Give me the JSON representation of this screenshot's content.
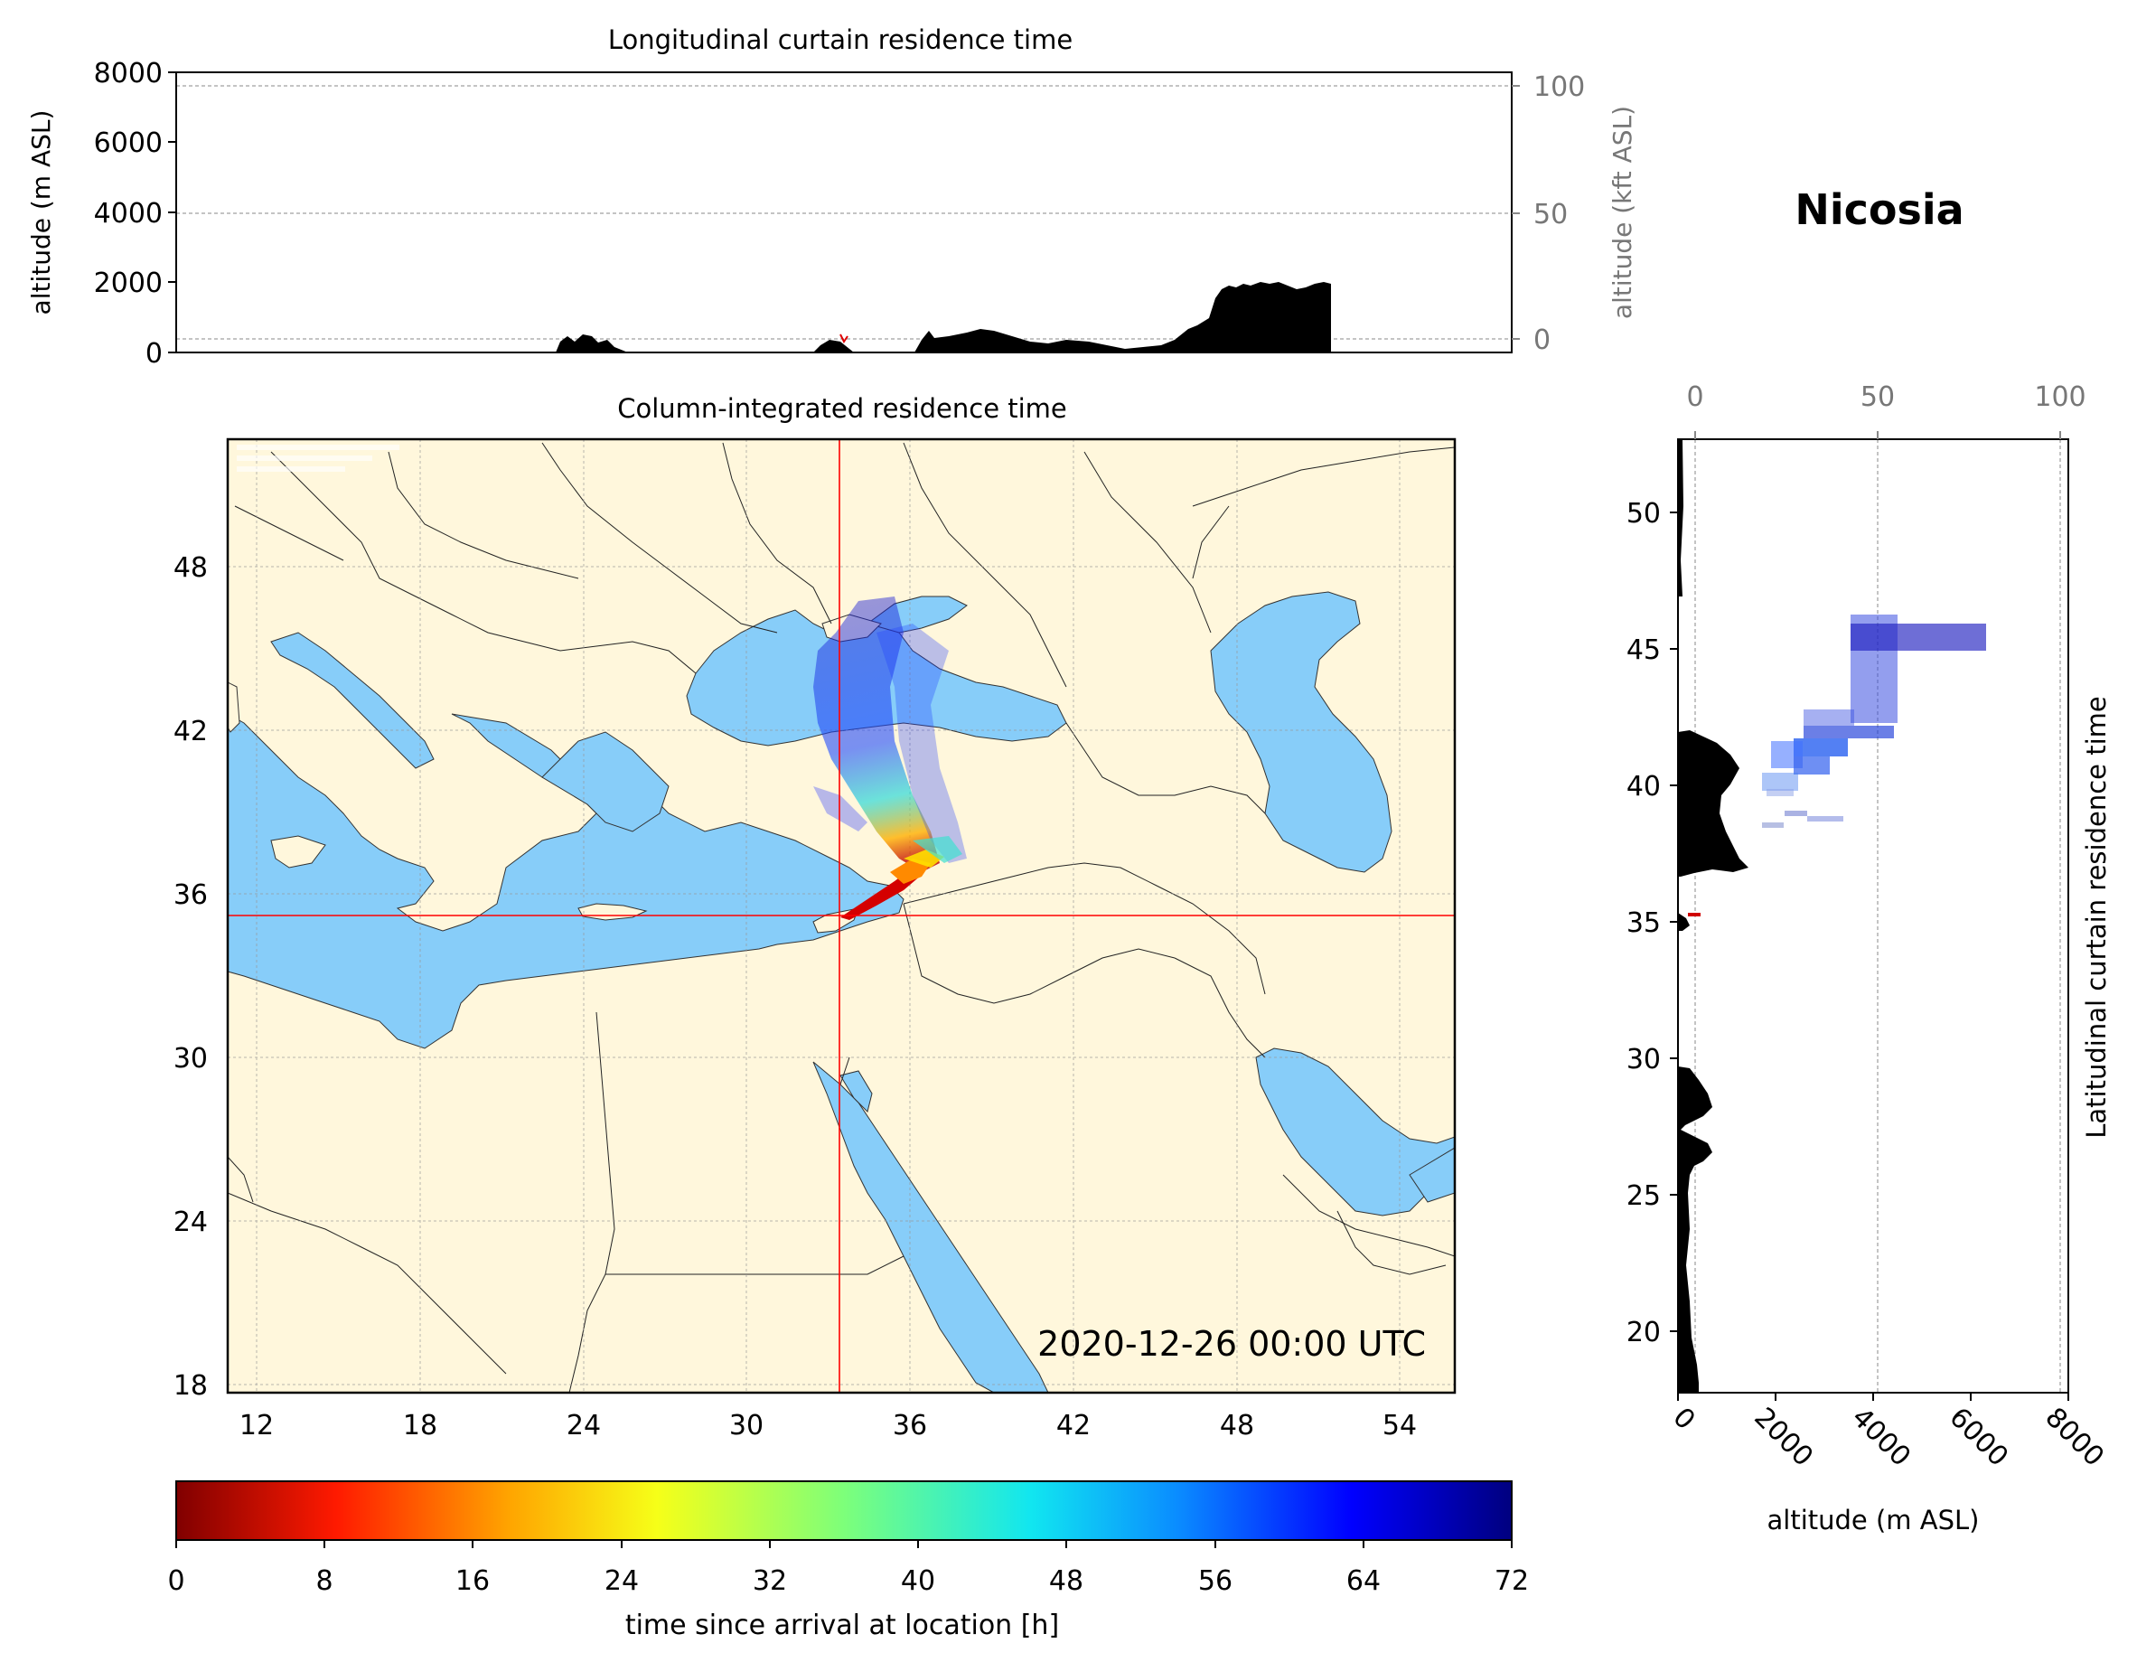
{
  "location_name": "Nicosia",
  "top_panel": {
    "title": "Longitudinal curtain residence time",
    "ylabel_left": "altitude (m ASL)",
    "ylabel_right": "altitude (kft ASL)",
    "yticks_left": [
      "0",
      "2000",
      "4000",
      "6000",
      "8000"
    ],
    "yticks_right": [
      "0",
      "50",
      "100"
    ]
  },
  "map_panel": {
    "title": "Column-integrated residence time",
    "timestamp": "2020-12-26 00:00 UTC",
    "lon_ticks": [
      "12",
      "18",
      "24",
      "30",
      "36",
      "42",
      "48",
      "54"
    ],
    "lat_ticks": [
      "18",
      "24",
      "30",
      "36",
      "42",
      "48"
    ],
    "station": {
      "lon": 33.38,
      "lat": 35.18
    },
    "colors": {
      "land": "#fff7dc",
      "sea": "#87cdf9",
      "marker": "#ff0000"
    }
  },
  "right_panel": {
    "ylabel_right": "Latitudinal curtain residence time",
    "xlabel": "altitude (m ASL)",
    "xticks_bottom": [
      "0",
      "2000",
      "4000",
      "6000",
      "8000"
    ],
    "xticks_top": [
      "0",
      "50",
      "100"
    ],
    "yticks": [
      "20",
      "25",
      "30",
      "35",
      "40",
      "45",
      "50"
    ]
  },
  "colorbar": {
    "label": "time since arrival at location [h]",
    "ticks": [
      "0",
      "8",
      "16",
      "24",
      "32",
      "40",
      "48",
      "56",
      "64",
      "72"
    ],
    "colormap": "jet_r"
  }
}
